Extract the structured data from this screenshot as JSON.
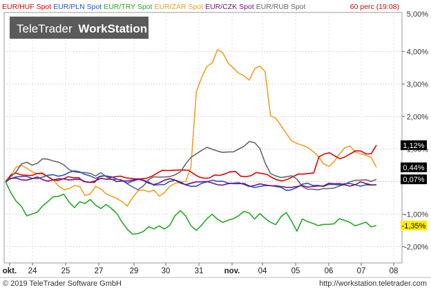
{
  "header": {
    "legend": [
      {
        "label": "EUR/HUF Spot",
        "color": "#dd0000"
      },
      {
        "label": "EUR/PLN Spot",
        "color": "#2255cc"
      },
      {
        "label": "EUR/TRY Spot",
        "color": "#22aa22"
      },
      {
        "label": "EUR/ZAR Spot",
        "color": "#f0a020"
      },
      {
        "label": "EUR/CZK Spot",
        "color": "#771177"
      },
      {
        "label": "EUR/RUB Spot",
        "color": "#666666"
      }
    ],
    "period_info": "60 perc (19:08)"
  },
  "watermark": {
    "brand": "TeleTrader",
    "product": "WorkStation"
  },
  "footer": {
    "copyright": "© 2019 TeleTrader Software GmbH",
    "url": "http://workstation.teletrader.com"
  },
  "chart_data": {
    "type": "line",
    "x_labels": [
      "okt.",
      "24",
      "25",
      "27",
      "29",
      "30",
      "31",
      "nov.",
      "04",
      "05",
      "06",
      "07",
      "08"
    ],
    "y_ticks": [
      "4,00%",
      "3,00%",
      "2,00%",
      "1,00%",
      "-1,00%",
      "-2,00%"
    ],
    "y_top_label": "5,00%",
    "ylim": [
      -2.5,
      5.2
    ],
    "grid": true,
    "series": [
      {
        "name": "EUR/ZAR Spot",
        "color": "#f0a020",
        "end_label": "0,44%",
        "values": [
          0,
          0.15,
          0.4,
          0.5,
          0.45,
          0.35,
          0.25,
          0.2,
          0.1,
          0.05,
          -0.1,
          -0.2,
          -0.2,
          -0.15,
          -0.2,
          -0.45,
          -0.35,
          -0.1,
          -0.2,
          -0.4,
          -0.5,
          -0.55,
          -0.6,
          -0.7,
          -0.45,
          -0.3,
          -0.3,
          -0.35,
          -0.25,
          -0.4,
          -0.3,
          -0.15,
          -0.1,
          -0.05,
          0,
          0.5,
          2.8,
          3.2,
          3.5,
          3.6,
          4.05,
          4.0,
          3.7,
          3.5,
          3.3,
          3.2,
          3.1,
          3.5,
          3.6,
          3.4,
          2.0,
          1.9,
          1.7,
          1.5,
          1.3,
          1.2,
          1.1,
          1.0,
          0.9,
          0.8,
          0.6,
          0.5,
          0.6,
          0.8,
          1.0,
          1.1,
          0.95,
          0.9,
          0.8,
          0.7,
          0.44
        ]
      },
      {
        "name": "EUR/HUF Spot",
        "color": "#dd0000",
        "end_label": "1,12%",
        "values": [
          0,
          0.2,
          0.3,
          0.25,
          0.2,
          0.15,
          0.2,
          0.25,
          0.2,
          0.1,
          0.05,
          0.05,
          0.1,
          0.1,
          0.15,
          0.05,
          0,
          -0.05,
          0.1,
          0.15,
          0.15,
          0.2,
          0.2,
          0.1,
          0.05,
          0.05,
          0.1,
          0.15,
          0.2,
          0.25,
          0.3,
          0.3,
          0.35,
          0.4,
          0.4,
          0.35,
          0.2,
          0.1,
          0.1,
          0.15,
          0.25,
          0.2,
          0.2,
          0.25,
          0.3,
          0.2,
          0.2,
          0.2,
          0.25,
          0.2,
          0.2,
          0.15,
          0.1,
          0.05,
          0.05,
          0.1,
          0.2,
          0.25,
          0.3,
          0.3,
          0.75,
          0.8,
          0.85,
          0.8,
          0.75,
          0.8,
          0.85,
          0.9,
          0.9,
          0.85,
          0.9,
          1.12
        ]
      },
      {
        "name": "EUR/RUB Spot",
        "color": "#666666",
        "end_label": "0,07%",
        "values": [
          0,
          0.2,
          0.3,
          0.5,
          0.55,
          0.5,
          0.6,
          0.75,
          0.7,
          0.6,
          0.55,
          0.5,
          0.4,
          0.35,
          0.3,
          0.25,
          0.2,
          0.15,
          0.3,
          0.2,
          0.1,
          0.05,
          0,
          -0.1,
          -0.15,
          -0.2,
          -0.1,
          0.05,
          0.1,
          0.1,
          0.15,
          0.2,
          0.25,
          0.3,
          0.5,
          0.7,
          0.85,
          1.0,
          1.1,
          1.0,
          0.9,
          0.85,
          0.9,
          0.95,
          1.05,
          1.1,
          1.2,
          1.15,
          1.0,
          0.6,
          0.3,
          0.2,
          0.1,
          0.1,
          0.15,
          0.1,
          -0.1,
          -0.2,
          -0.25,
          -0.3,
          -0.25,
          -0.2,
          -0.15,
          -0.1,
          -0.1,
          -0.05,
          0,
          0.05,
          0.1,
          0.05,
          0.07
        ]
      },
      {
        "name": "EUR/PLN Spot",
        "color": "#2255cc",
        "end_label": null,
        "values": [
          0,
          0.05,
          0.1,
          0.15,
          0.2,
          0.15,
          0.1,
          0.1,
          0.15,
          0.2,
          0.2,
          0.25,
          0.3,
          0.3,
          0.25,
          0.2,
          0.2,
          0.15,
          0.2,
          0.15,
          0.1,
          0.05,
          0.05,
          0,
          0.05,
          0.05,
          0,
          -0.05,
          -0.1,
          -0.05,
          -0.05,
          0,
          0,
          -0.05,
          -0.1,
          -0.1,
          -0.1,
          -0.05,
          -0.05,
          0,
          0,
          0.05,
          0,
          -0.05,
          -0.1,
          -0.1,
          -0.15,
          -0.15,
          -0.1,
          -0.1,
          -0.15,
          -0.2,
          -0.2,
          -0.25,
          -0.2,
          -0.15,
          -0.1,
          -0.1,
          -0.15,
          -0.1,
          -0.1,
          -0.05,
          -0.1,
          -0.15,
          -0.1,
          -0.05,
          -0.05,
          -0.1,
          -0.1,
          -0.15,
          -0.1
        ]
      },
      {
        "name": "EUR/CZK Spot",
        "color": "#771177",
        "end_label": null,
        "values": [
          0,
          0.1,
          0.15,
          0.1,
          0.05,
          0.05,
          0.1,
          0.05,
          0.05,
          0.1,
          0.1,
          0.05,
          0,
          0.05,
          0.1,
          0.05,
          0,
          0,
          0.05,
          0.05,
          0.1,
          0.05,
          0.05,
          0,
          0,
          0.05,
          0.05,
          0,
          -0.05,
          -0.05,
          0,
          0.05,
          0.05,
          0,
          -0.05,
          -0.05,
          -0.05,
          -0.05,
          0,
          0,
          -0.05,
          -0.1,
          -0.1,
          -0.1,
          -0.05,
          -0.05,
          -0.1,
          -0.1,
          -0.1,
          -0.15,
          -0.15,
          -0.1,
          -0.1,
          -0.15,
          -0.2,
          -0.2,
          -0.15,
          -0.15,
          -0.1,
          -0.1,
          -0.15,
          -0.1,
          -0.1,
          -0.05,
          -0.05,
          -0.1,
          -0.1,
          -0.05,
          -0.1,
          -0.1,
          -0.1
        ]
      },
      {
        "name": "EUR/TRY Spot",
        "color": "#22aa22",
        "end_label": "-1,35%",
        "values": [
          0,
          -0.3,
          -0.6,
          -0.8,
          -1.1,
          -1.0,
          -0.9,
          -0.7,
          -0.6,
          -0.5,
          -0.5,
          -0.4,
          -0.6,
          -0.75,
          -0.6,
          -0.7,
          -0.6,
          -0.75,
          -0.8,
          -0.65,
          -0.8,
          -1.0,
          -1.3,
          -1.5,
          -1.6,
          -1.55,
          -1.5,
          -1.4,
          -1.5,
          -1.4,
          -1.45,
          -1.3,
          -1.0,
          -0.9,
          -1.1,
          -1.4,
          -1.5,
          -1.3,
          -1.1,
          -1.0,
          -1.2,
          -1.3,
          -1.2,
          -1.1,
          -1.0,
          -0.9,
          -1.0,
          -1.2,
          -1.0,
          -1.1,
          -1.2,
          -1.3,
          -1.1,
          -1.0,
          -1.25,
          -1.5,
          -1.1,
          -1.2,
          -1.3,
          -1.4,
          -1.35,
          -1.3,
          -1.25,
          -1.1,
          -1.2,
          -1.3,
          -1.4,
          -1.3,
          -1.2,
          -1.35,
          -1.35
        ]
      }
    ]
  }
}
